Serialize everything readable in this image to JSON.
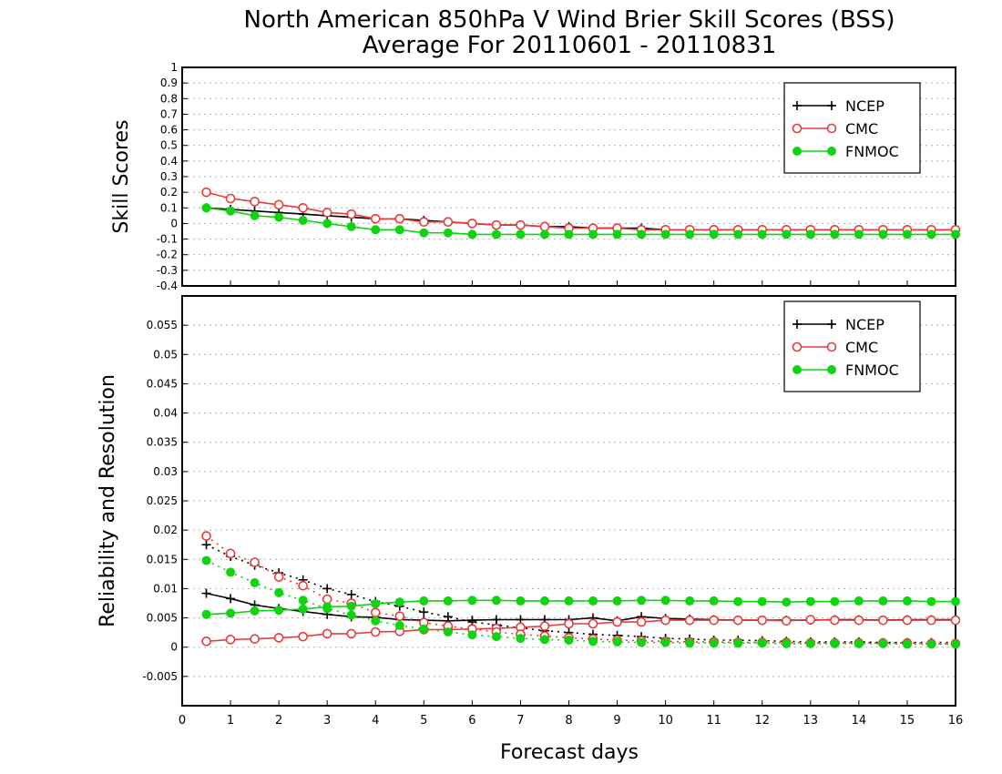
{
  "title_line1": "North American 850hPa V Wind Brier Skill Scores (BSS)",
  "title_line2": "Average For 20110601 - 20110831",
  "xlabel": "Forecast days",
  "colors": {
    "NCEP": "#000000",
    "CMC": "#e83c3c",
    "FNMOC": "#11d411"
  },
  "chart_data": [
    {
      "type": "line",
      "ylabel": "Skill Scores",
      "ylim": [
        -0.4,
        1
      ],
      "yticks": [
        "1",
        "0.9",
        "0.8",
        "0.7",
        "0.6",
        "0.5",
        "0.4",
        "0.3",
        "0.2",
        "0.1",
        "0",
        "-0.1",
        "-0.2",
        "-0.3",
        "-0.4"
      ],
      "ytick_values": [
        1,
        0.9,
        0.8,
        0.7,
        0.6,
        0.5,
        0.4,
        0.3,
        0.2,
        0.1,
        0,
        -0.1,
        -0.2,
        -0.3,
        -0.4
      ],
      "xlim": [
        0,
        16
      ],
      "xticks": [
        "0",
        "1",
        "2",
        "3",
        "4",
        "5",
        "6",
        "7",
        "8",
        "9",
        "10",
        "11",
        "12",
        "13",
        "14",
        "15",
        "16"
      ],
      "grid": true,
      "legend_position": "top-right",
      "x": [
        0.5,
        1,
        1.5,
        2,
        2.5,
        3,
        3.5,
        4,
        4.5,
        5,
        5.5,
        6,
        6.5,
        7,
        7.5,
        8,
        8.5,
        9,
        9.5,
        10,
        10.5,
        11,
        11.5,
        12,
        12.5,
        13,
        13.5,
        14,
        14.5,
        15,
        15.5,
        16
      ],
      "series": [
        {
          "name": "NCEP",
          "marker": "plus",
          "style": "solid",
          "values": [
            0.1,
            0.09,
            0.08,
            0.07,
            0.06,
            0.05,
            0.04,
            0.03,
            0.03,
            0.02,
            0.01,
            0.0,
            -0.01,
            -0.01,
            -0.02,
            -0.02,
            -0.03,
            -0.03,
            -0.03,
            -0.04,
            -0.04,
            -0.04,
            -0.04,
            -0.04,
            -0.04,
            -0.04,
            -0.04,
            -0.04,
            -0.04,
            -0.04,
            -0.04,
            -0.04
          ]
        },
        {
          "name": "CMC",
          "marker": "open-circle",
          "style": "solid",
          "values": [
            0.2,
            0.16,
            0.14,
            0.12,
            0.1,
            0.07,
            0.06,
            0.03,
            0.03,
            0.01,
            0.01,
            0.0,
            -0.01,
            -0.01,
            -0.02,
            -0.03,
            -0.03,
            -0.03,
            -0.04,
            -0.04,
            -0.04,
            -0.04,
            -0.04,
            -0.04,
            -0.04,
            -0.04,
            -0.04,
            -0.04,
            -0.04,
            -0.04,
            -0.04,
            -0.04
          ]
        },
        {
          "name": "FNMOC",
          "marker": "filled-circle",
          "style": "solid",
          "values": [
            0.1,
            0.08,
            0.05,
            0.04,
            0.02,
            0.0,
            -0.02,
            -0.04,
            -0.04,
            -0.06,
            -0.06,
            -0.07,
            -0.07,
            -0.07,
            -0.07,
            -0.07,
            -0.07,
            -0.07,
            -0.07,
            -0.07,
            -0.07,
            -0.07,
            -0.07,
            -0.07,
            -0.07,
            -0.07,
            -0.07,
            -0.07,
            -0.07,
            -0.07,
            -0.07,
            -0.07
          ]
        }
      ]
    },
    {
      "type": "line",
      "ylabel": "Reliability and Resolution",
      "ylim": [
        -0.01,
        0.06
      ],
      "yticks": [
        "0.055",
        "0.05",
        "0.045",
        "0.04",
        "0.035",
        "0.03",
        "0.025",
        "0.02",
        "0.015",
        "0.01",
        "0.005",
        "0",
        "-0.005"
      ],
      "ytick_values": [
        0.055,
        0.05,
        0.045,
        0.04,
        0.035,
        0.03,
        0.025,
        0.02,
        0.015,
        0.01,
        0.005,
        0,
        -0.005
      ],
      "xlim": [
        0,
        16
      ],
      "xticks": [
        "0",
        "1",
        "2",
        "3",
        "4",
        "5",
        "6",
        "7",
        "8",
        "9",
        "10",
        "11",
        "12",
        "13",
        "14",
        "15",
        "16"
      ],
      "grid": true,
      "legend_position": "top-right",
      "x": [
        0.5,
        1,
        1.5,
        2,
        2.5,
        3,
        3.5,
        4,
        4.5,
        5,
        5.5,
        6,
        6.5,
        7,
        7.5,
        8,
        8.5,
        9,
        9.5,
        10,
        10.5,
        11,
        11.5,
        12,
        12.5,
        13,
        13.5,
        14,
        14.5,
        15,
        15.5,
        16
      ],
      "series": [
        {
          "name": "NCEP",
          "marker": "plus",
          "style": "solid",
          "values": [
            0.0092,
            0.0083,
            0.0072,
            0.0066,
            0.0061,
            0.0056,
            0.0052,
            0.0051,
            0.0047,
            0.0046,
            0.0045,
            0.0046,
            0.0047,
            0.0047,
            0.0047,
            0.0047,
            0.005,
            0.0045,
            0.0052,
            0.0049,
            0.0048,
            0.0047,
            0.0046,
            0.0046,
            0.0046,
            0.0046,
            0.0047,
            0.0047,
            0.0046,
            0.0047,
            0.0047,
            0.0047
          ]
        },
        {
          "name": "NCEP",
          "marker": "plus",
          "style": "dotted",
          "values": [
            0.0175,
            0.0155,
            0.014,
            0.0127,
            0.0115,
            0.01,
            0.009,
            0.0078,
            0.007,
            0.006,
            0.0052,
            0.0043,
            0.0038,
            0.0033,
            0.0028,
            0.0025,
            0.0022,
            0.002,
            0.0018,
            0.0015,
            0.0014,
            0.0012,
            0.0012,
            0.0011,
            0.001,
            0.0009,
            0.0009,
            0.0009,
            0.0008,
            0.0008,
            0.0008,
            0.0008
          ]
        },
        {
          "name": "CMC",
          "marker": "open-circle",
          "style": "solid",
          "values": [
            0.001,
            0.0013,
            0.0014,
            0.0016,
            0.0018,
            0.0023,
            0.0023,
            0.0026,
            0.0027,
            0.003,
            0.003,
            0.0031,
            0.0032,
            0.0034,
            0.0036,
            0.004,
            0.004,
            0.0043,
            0.0043,
            0.0046,
            0.0046,
            0.0046,
            0.0046,
            0.0046,
            0.0045,
            0.0047,
            0.0046,
            0.0046,
            0.0046,
            0.0046,
            0.0046,
            0.0046
          ]
        },
        {
          "name": "CMC",
          "marker": "open-circle",
          "style": "dotted",
          "values": [
            0.019,
            0.016,
            0.0145,
            0.012,
            0.0105,
            0.0082,
            0.0075,
            0.0059,
            0.0053,
            0.0042,
            0.0036,
            0.0031,
            0.0026,
            0.0022,
            0.0019,
            0.0016,
            0.0014,
            0.0012,
            0.0011,
            0.001,
            0.0009,
            0.0009,
            0.0008,
            0.0008,
            0.0008,
            0.0007,
            0.0007,
            0.0007,
            0.0007,
            0.0007,
            0.0006,
            0.0006
          ]
        },
        {
          "name": "FNMOC",
          "marker": "filled-circle",
          "style": "solid",
          "values": [
            0.0056,
            0.0058,
            0.0062,
            0.0063,
            0.0065,
            0.0069,
            0.007,
            0.0074,
            0.0077,
            0.0079,
            0.0079,
            0.008,
            0.008,
            0.0079,
            0.0079,
            0.0079,
            0.0079,
            0.0079,
            0.008,
            0.008,
            0.0079,
            0.0079,
            0.0078,
            0.0078,
            0.0077,
            0.0078,
            0.0078,
            0.0079,
            0.0079,
            0.0079,
            0.0078,
            0.0078
          ]
        },
        {
          "name": "FNMOC",
          "marker": "filled-circle",
          "style": "dotted",
          "values": [
            0.0148,
            0.0128,
            0.011,
            0.0093,
            0.008,
            0.0066,
            0.0055,
            0.0045,
            0.0037,
            0.0031,
            0.0026,
            0.0021,
            0.0018,
            0.0015,
            0.0013,
            0.0012,
            0.001,
            0.0009,
            0.0008,
            0.0008,
            0.0007,
            0.0007,
            0.0007,
            0.0007,
            0.0006,
            0.0006,
            0.0006,
            0.0006,
            0.0006,
            0.0005,
            0.0005,
            0.0005
          ]
        }
      ]
    }
  ]
}
